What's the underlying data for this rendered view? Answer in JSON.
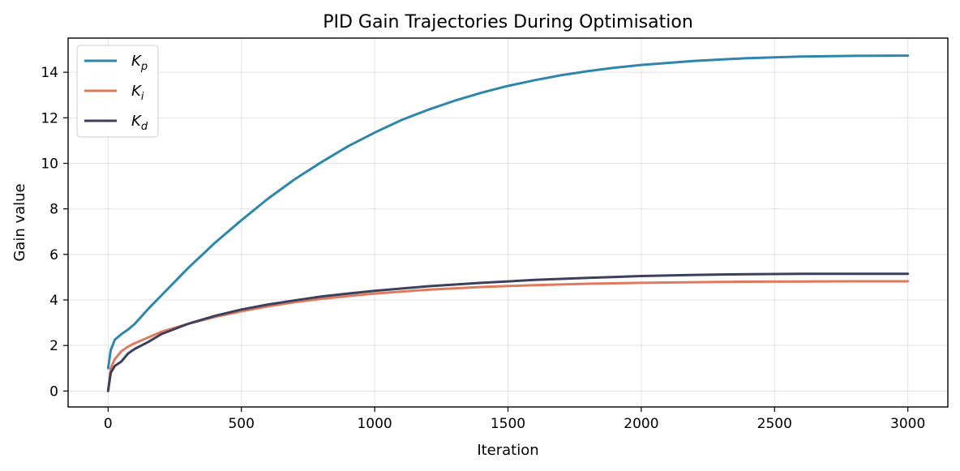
{
  "chart_data": {
    "type": "line",
    "title": "PID Gain Trajectories During Optimisation",
    "xlabel": "Iteration",
    "ylabel": "Gain value",
    "xlim": [
      -150,
      3150
    ],
    "ylim": [
      -0.7,
      15.5
    ],
    "xticks": [
      0,
      500,
      1000,
      1500,
      2000,
      2500,
      3000
    ],
    "yticks": [
      0,
      2,
      4,
      6,
      8,
      10,
      12,
      14
    ],
    "grid": true,
    "legend_position": "top-left",
    "series": [
      {
        "name": "K_p",
        "legend_main": "K",
        "legend_sub": "p",
        "color": "#2e86ab",
        "points": [
          [
            0,
            1.0
          ],
          [
            10,
            1.8
          ],
          [
            25,
            2.25
          ],
          [
            50,
            2.5
          ],
          [
            75,
            2.7
          ],
          [
            100,
            2.95
          ],
          [
            150,
            3.6
          ],
          [
            200,
            4.2
          ],
          [
            250,
            4.8
          ],
          [
            300,
            5.4
          ],
          [
            400,
            6.5
          ],
          [
            500,
            7.5
          ],
          [
            600,
            8.45
          ],
          [
            700,
            9.3
          ],
          [
            800,
            10.05
          ],
          [
            900,
            10.75
          ],
          [
            1000,
            11.35
          ],
          [
            1100,
            11.9
          ],
          [
            1200,
            12.35
          ],
          [
            1300,
            12.75
          ],
          [
            1400,
            13.1
          ],
          [
            1500,
            13.4
          ],
          [
            1600,
            13.65
          ],
          [
            1700,
            13.87
          ],
          [
            1800,
            14.05
          ],
          [
            1900,
            14.2
          ],
          [
            2000,
            14.32
          ],
          [
            2200,
            14.5
          ],
          [
            2400,
            14.62
          ],
          [
            2600,
            14.69
          ],
          [
            2800,
            14.72
          ],
          [
            3000,
            14.73
          ]
        ]
      },
      {
        "name": "K_i",
        "legend_main": "K",
        "legend_sub": "i",
        "color": "#e07a5f",
        "points": [
          [
            0,
            0.0
          ],
          [
            10,
            1.0
          ],
          [
            25,
            1.4
          ],
          [
            50,
            1.75
          ],
          [
            75,
            1.95
          ],
          [
            100,
            2.1
          ],
          [
            150,
            2.35
          ],
          [
            200,
            2.6
          ],
          [
            300,
            2.95
          ],
          [
            400,
            3.25
          ],
          [
            500,
            3.5
          ],
          [
            600,
            3.72
          ],
          [
            700,
            3.9
          ],
          [
            800,
            4.05
          ],
          [
            900,
            4.17
          ],
          [
            1000,
            4.28
          ],
          [
            1200,
            4.45
          ],
          [
            1400,
            4.57
          ],
          [
            1600,
            4.65
          ],
          [
            1800,
            4.71
          ],
          [
            2000,
            4.75
          ],
          [
            2200,
            4.78
          ],
          [
            2400,
            4.8
          ],
          [
            2600,
            4.81
          ],
          [
            2800,
            4.82
          ],
          [
            3000,
            4.82
          ]
        ]
      },
      {
        "name": "K_d",
        "legend_main": "K",
        "legend_sub": "d",
        "color": "#3d405b",
        "points": [
          [
            0,
            0.0
          ],
          [
            10,
            0.8
          ],
          [
            25,
            1.1
          ],
          [
            50,
            1.3
          ],
          [
            75,
            1.65
          ],
          [
            100,
            1.85
          ],
          [
            150,
            2.15
          ],
          [
            200,
            2.5
          ],
          [
            300,
            2.95
          ],
          [
            400,
            3.3
          ],
          [
            500,
            3.58
          ],
          [
            600,
            3.8
          ],
          [
            700,
            3.98
          ],
          [
            800,
            4.15
          ],
          [
            900,
            4.28
          ],
          [
            1000,
            4.4
          ],
          [
            1200,
            4.6
          ],
          [
            1400,
            4.75
          ],
          [
            1600,
            4.88
          ],
          [
            1800,
            4.97
          ],
          [
            2000,
            5.05
          ],
          [
            2200,
            5.1
          ],
          [
            2400,
            5.13
          ],
          [
            2600,
            5.15
          ],
          [
            2800,
            5.15
          ],
          [
            3000,
            5.15
          ]
        ]
      }
    ]
  }
}
